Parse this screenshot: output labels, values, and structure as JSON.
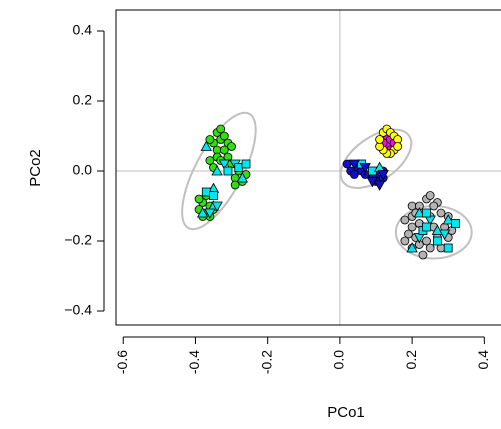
{
  "chart_data": {
    "type": "scatter",
    "title": "",
    "xlabel": "PCo1",
    "ylabel": "PCo2",
    "xlim": [
      -0.62,
      0.46
    ],
    "ylim": [
      -0.44,
      0.46
    ],
    "x_ticks": [
      -0.6,
      -0.4,
      -0.2,
      0.0,
      0.2,
      0.4
    ],
    "x_tick_labels": [
      "-0.6",
      "-0.4",
      "-0.2",
      "0.0",
      "0.2",
      "0.4"
    ],
    "y_ticks": [
      0.4,
      0.2,
      0.0,
      -0.2,
      -0.4
    ],
    "y_tick_labels": [
      "0.4",
      "0.2",
      "0.0",
      "−0.2",
      "−0.4"
    ],
    "reference_lines": {
      "x": 0,
      "y": 0,
      "color": "#bdbdbd"
    },
    "grid": false,
    "legend": "none",
    "ellipses": [
      {
        "cx": -0.335,
        "cy": 0.0,
        "rx": 0.065,
        "ry": 0.185,
        "angle": 28,
        "stroke": "#c0c0c0"
      },
      {
        "cx": 0.1,
        "cy": 0.035,
        "rx": 0.06,
        "ry": 0.115,
        "angle": 55,
        "stroke": "#c0c0c0"
      },
      {
        "cx": 0.26,
        "cy": -0.175,
        "rx": 0.105,
        "ry": 0.075,
        "angle": 0,
        "stroke": "#c0c0c0"
      }
    ],
    "series": [
      {
        "group": "green",
        "shape": "circle",
        "fill": "#33dd11",
        "points": [
          [
            -0.34,
            0.11
          ],
          [
            -0.33,
            0.09
          ],
          [
            -0.32,
            0.1
          ],
          [
            -0.35,
            0.08
          ],
          [
            -0.33,
            0.12
          ],
          [
            -0.31,
            0.08
          ],
          [
            -0.34,
            0.06
          ],
          [
            -0.36,
            0.09
          ],
          [
            -0.32,
            0.06
          ],
          [
            -0.3,
            0.07
          ],
          [
            -0.34,
            0.04
          ],
          [
            -0.33,
            0.03
          ],
          [
            -0.36,
            0.03
          ],
          [
            -0.31,
            0.04
          ],
          [
            -0.35,
            0.01
          ],
          [
            -0.3,
            0.02
          ],
          [
            -0.28,
            0.0
          ],
          [
            -0.29,
            -0.02
          ],
          [
            -0.27,
            -0.03
          ],
          [
            -0.26,
            -0.01
          ],
          [
            -0.29,
            -0.04
          ],
          [
            -0.37,
            -0.07
          ],
          [
            -0.38,
            -0.09
          ],
          [
            -0.36,
            -0.1
          ],
          [
            -0.39,
            -0.11
          ],
          [
            -0.37,
            -0.12
          ],
          [
            -0.38,
            -0.13
          ],
          [
            -0.36,
            -0.13
          ],
          [
            -0.35,
            -0.11
          ],
          [
            -0.39,
            -0.08
          ]
        ]
      },
      {
        "group": "green",
        "shape": "triangle",
        "fill": "#00e5ee",
        "points": [
          [
            -0.37,
            0.07
          ],
          [
            -0.34,
            0.0
          ],
          [
            -0.27,
            -0.02
          ],
          [
            -0.35,
            -0.05
          ],
          [
            -0.38,
            -0.12
          ],
          [
            -0.35,
            -0.1
          ]
        ]
      },
      {
        "group": "green",
        "shape": "down-triangle",
        "fill": "#00e5ee",
        "points": [
          [
            -0.32,
            0.02
          ],
          [
            -0.29,
            0.02
          ],
          [
            -0.34,
            -0.1
          ],
          [
            -0.36,
            -0.12
          ]
        ]
      },
      {
        "group": "green",
        "shape": "square",
        "fill": "#00e5ee",
        "points": [
          [
            -0.31,
            0.0
          ],
          [
            -0.28,
            0.01
          ],
          [
            -0.26,
            0.02
          ],
          [
            -0.37,
            -0.06
          ],
          [
            -0.35,
            -0.07
          ]
        ]
      },
      {
        "group": "blue",
        "shape": "circle",
        "fill": "#1010cc",
        "points": [
          [
            0.02,
            0.02
          ],
          [
            0.03,
            0.0
          ],
          [
            0.04,
            -0.01
          ],
          [
            0.05,
            0.01
          ],
          [
            0.06,
            0.0
          ],
          [
            0.07,
            -0.01
          ],
          [
            0.08,
            -0.01
          ],
          [
            0.09,
            -0.02
          ],
          [
            0.1,
            -0.02
          ],
          [
            0.11,
            -0.01
          ],
          [
            0.12,
            -0.02
          ],
          [
            0.12,
            0.0
          ],
          [
            0.1,
            -0.03
          ]
        ]
      },
      {
        "group": "blue",
        "shape": "square",
        "fill": "#00e5ee",
        "points": [
          [
            0.06,
            0.02
          ],
          [
            0.09,
            0.0
          ]
        ]
      },
      {
        "group": "blue",
        "shape": "triangle",
        "fill": "#00e5ee",
        "points": [
          [
            0.11,
            0.01
          ]
        ]
      },
      {
        "group": "blue",
        "shape": "down-triangle",
        "fill": "#1010cc",
        "points": [
          [
            0.04,
            0.02
          ],
          [
            0.07,
            0.01
          ],
          [
            0.09,
            -0.03
          ],
          [
            0.11,
            -0.04
          ],
          [
            0.12,
            -0.01
          ]
        ]
      },
      {
        "group": "magenta",
        "shape": "circle",
        "fill": "#ff00ff",
        "points": [
          [
            0.13,
            0.1
          ],
          [
            0.14,
            0.09
          ],
          [
            0.13,
            0.07
          ],
          [
            0.14,
            0.06
          ],
          [
            0.15,
            0.08
          ],
          [
            0.12,
            0.08
          ]
        ]
      },
      {
        "group": "magenta",
        "shape": "circle",
        "fill": "#ffff00",
        "points": [
          [
            0.12,
            0.11
          ],
          [
            0.13,
            0.12
          ],
          [
            0.14,
            0.11
          ],
          [
            0.15,
            0.1
          ],
          [
            0.16,
            0.09
          ],
          [
            0.15,
            0.06
          ],
          [
            0.14,
            0.05
          ],
          [
            0.13,
            0.05
          ],
          [
            0.12,
            0.06
          ],
          [
            0.11,
            0.07
          ],
          [
            0.11,
            0.09
          ],
          [
            0.16,
            0.07
          ]
        ]
      },
      {
        "group": "gray",
        "shape": "circle",
        "fill": "#b3b3b3",
        "points": [
          [
            0.2,
            -0.1
          ],
          [
            0.22,
            -0.1
          ],
          [
            0.24,
            -0.08
          ],
          [
            0.25,
            -0.07
          ],
          [
            0.27,
            -0.09
          ],
          [
            0.23,
            -0.12
          ],
          [
            0.2,
            -0.13
          ],
          [
            0.18,
            -0.14
          ],
          [
            0.22,
            -0.15
          ],
          [
            0.25,
            -0.13
          ],
          [
            0.28,
            -0.12
          ],
          [
            0.3,
            -0.13
          ],
          [
            0.2,
            -0.16
          ],
          [
            0.23,
            -0.17
          ],
          [
            0.26,
            -0.16
          ],
          [
            0.29,
            -0.16
          ],
          [
            0.19,
            -0.18
          ],
          [
            0.21,
            -0.19
          ],
          [
            0.24,
            -0.2
          ],
          [
            0.27,
            -0.19
          ],
          [
            0.3,
            -0.19
          ],
          [
            0.22,
            -0.21
          ],
          [
            0.25,
            -0.22
          ],
          [
            0.28,
            -0.22
          ],
          [
            0.2,
            -0.22
          ],
          [
            0.26,
            -0.1
          ],
          [
            0.21,
            -0.12
          ],
          [
            0.31,
            -0.17
          ],
          [
            0.23,
            -0.24
          ],
          [
            0.18,
            -0.2
          ]
        ]
      },
      {
        "group": "gray",
        "shape": "triangle",
        "fill": "#00e5ee",
        "points": [
          [
            0.22,
            -0.12
          ],
          [
            0.27,
            -0.17
          ],
          [
            0.2,
            -0.22
          ],
          [
            0.3,
            -0.14
          ]
        ]
      },
      {
        "group": "gray",
        "shape": "down-triangle",
        "fill": "#00e5ee",
        "points": [
          [
            0.25,
            -0.14
          ],
          [
            0.29,
            -0.18
          ],
          [
            0.22,
            -0.19
          ]
        ]
      },
      {
        "group": "gray",
        "shape": "square",
        "fill": "#00e5ee",
        "points": [
          [
            0.24,
            -0.12
          ],
          [
            0.32,
            -0.15
          ],
          [
            0.23,
            -0.17
          ],
          [
            0.3,
            -0.22
          ],
          [
            0.27,
            -0.2
          ],
          [
            0.24,
            -0.16
          ]
        ]
      }
    ]
  }
}
